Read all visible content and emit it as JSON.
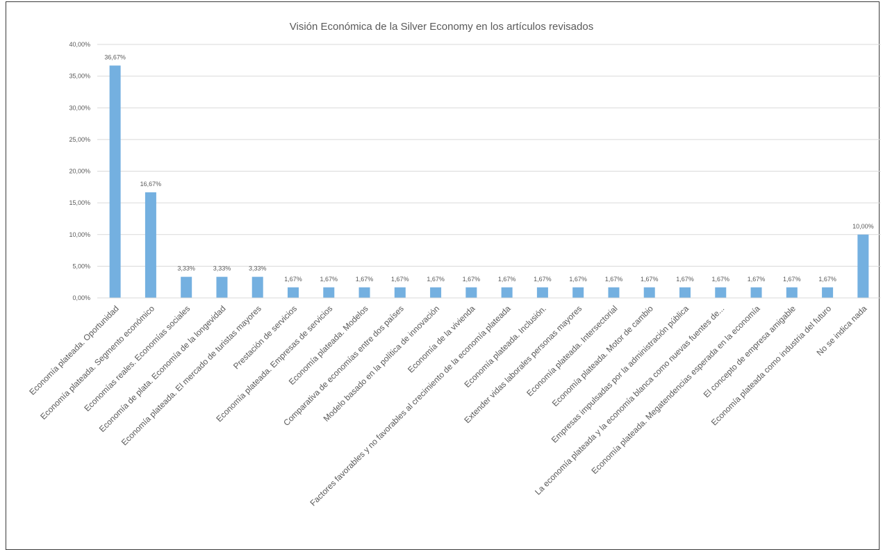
{
  "chart_data": {
    "type": "bar",
    "title": "Visión Económica de la Silver Economy en los artículos revisados",
    "xlabel": "",
    "ylabel": "",
    "ylim": [
      0,
      40
    ],
    "yticks": [
      "0,00%",
      "5,00%",
      "10,00%",
      "15,00%",
      "20,00%",
      "25,00%",
      "30,00%",
      "35,00%",
      "40,00%"
    ],
    "grid": true,
    "legend": "none",
    "bar_color": "#74b0e0",
    "categories": [
      "Economía plateada. Oportunidad",
      "Economía plateada. Segmento económico",
      "Economías reales. Economías sociales",
      "Economía de plata. Economía de la longevidad",
      "Economía plateada. El mercado de turistas mayores",
      "Prestación de servicios",
      "Economía plateada. Empresas de servicios",
      "Economía plateada. Modelos",
      "Comparativa de economías entre dos países",
      "Modelo basado en la política de innovación",
      "Economía de la vivienda",
      "Factores favorables y no favorables al crecimiento de la economía plateada",
      "Economía plateada. Inclusión.",
      "Extender vidas laborales personas mayores",
      "Economía plateada. Intersectorial",
      "Economía plateada. Motor de cambio",
      "Empresas impulsadas por la  administración pública",
      "La economía plateada y la economía blanca como nuevas fuentes de...",
      "Economía plateada. Megatendencias esperada en la economía",
      "El concepto de empresa amigable",
      "Economía plateada como industria del futuro",
      "No se indica nada"
    ],
    "values": [
      36.67,
      16.67,
      3.33,
      3.33,
      3.33,
      1.67,
      1.67,
      1.67,
      1.67,
      1.67,
      1.67,
      1.67,
      1.67,
      1.67,
      1.67,
      1.67,
      1.67,
      1.67,
      1.67,
      1.67,
      1.67,
      10.0
    ],
    "data_labels": [
      "36,67%",
      "16,67%",
      "3,33%",
      "3,33%",
      "3,33%",
      "1,67%",
      "1,67%",
      "1,67%",
      "1,67%",
      "1,67%",
      "1,67%",
      "1,67%",
      "1,67%",
      "1,67%",
      "1,67%",
      "1,67%",
      "1,67%",
      "1,67%",
      "1,67%",
      "1,67%",
      "1,67%",
      "10,00%"
    ]
  }
}
